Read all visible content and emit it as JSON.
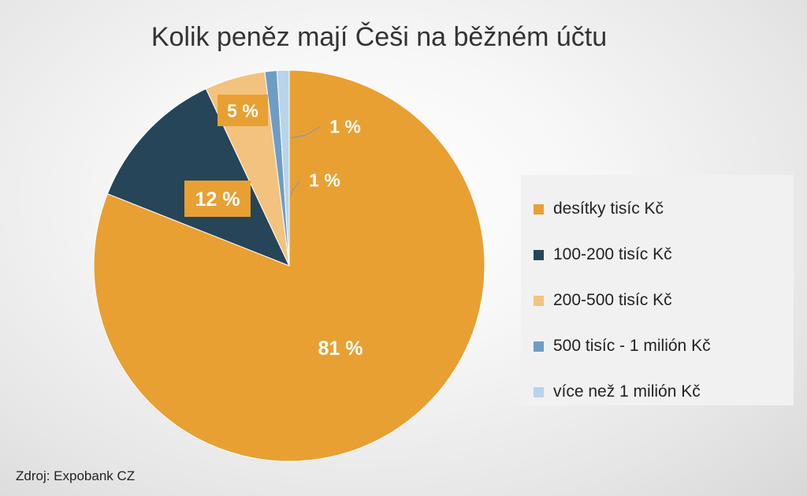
{
  "chart_data": {
    "type": "pie",
    "title": "Kolik peněz mají Češi na běžném účtu",
    "slices": [
      {
        "name": "desítky tisíc Kč",
        "value": 81,
        "label": "81 %",
        "color": "#E8A033"
      },
      {
        "name": "100-200 tisíc Kč",
        "value": 12,
        "label": "12 %",
        "color": "#264559"
      },
      {
        "name": "200-500 tisíc Kč",
        "value": 5,
        "label": "5 %",
        "color": "#F3C27E"
      },
      {
        "name": "500 tisíc - 1 milión Kč",
        "value": 1,
        "label": "1 %",
        "color": "#6E9DC4"
      },
      {
        "name": "více než 1 milión Kč",
        "value": 1,
        "label": "1 %",
        "color": "#B9D3EA"
      }
    ],
    "legend_position": "right",
    "label_box_color": "#E8A033",
    "source": "Zdroj: Expobank CZ"
  }
}
